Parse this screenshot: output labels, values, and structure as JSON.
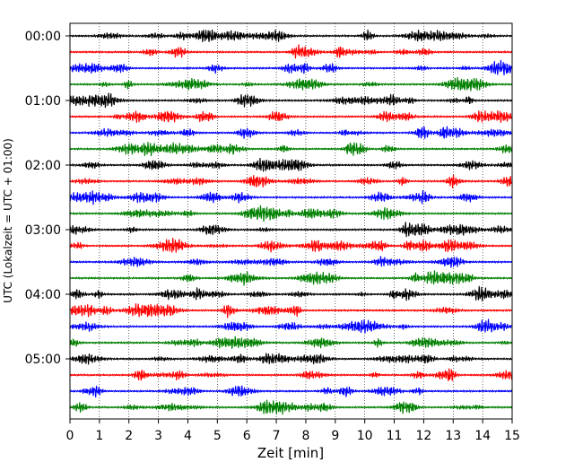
{
  "chart_data": {
    "type": "line",
    "subtype": "helicorder",
    "xlabel": "Zeit  [min]",
    "ylabel": "UTC (Lokalzeit = UTC + 01:00)",
    "xlim": [
      0,
      15
    ],
    "xticks": [
      "0",
      "1",
      "2",
      "3",
      "4",
      "5",
      "6",
      "7",
      "8",
      "9",
      "10",
      "11",
      "12",
      "13",
      "14",
      "15"
    ],
    "row_minutes": 15,
    "row_count": 24,
    "yticks": [
      {
        "label": "00:00",
        "row": 0
      },
      {
        "label": "01:00",
        "row": 4
      },
      {
        "label": "02:00",
        "row": 8
      },
      {
        "label": "03:00",
        "row": 12
      },
      {
        "label": "04:00",
        "row": 16
      },
      {
        "label": "05:00",
        "row": 20
      }
    ],
    "trace_colors": [
      "#000000",
      "#ff0000",
      "#0000ff",
      "#008000"
    ],
    "grid": "vertical dotted at each minute",
    "legend": "none"
  }
}
